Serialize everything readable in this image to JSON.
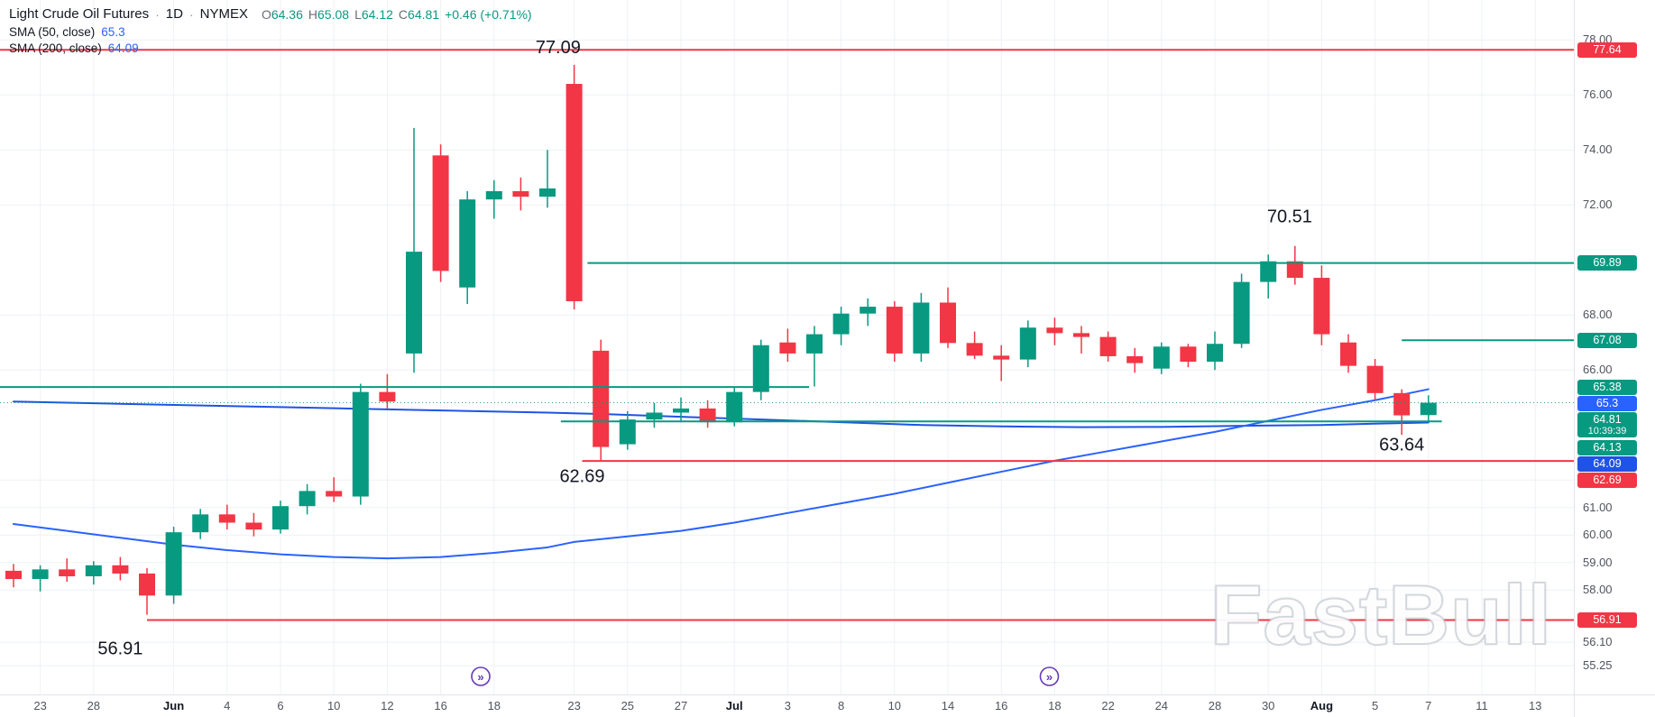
{
  "legend": {
    "symbol": "Light Crude Oil Futures",
    "dot": "·",
    "interval": "1D",
    "exchange": "NYMEX",
    "ohlc": {
      "o_label": "O",
      "o": "64.36",
      "h_label": "H",
      "h": "65.08",
      "l_label": "L",
      "l": "64.12",
      "c_label": "C",
      "c": "64.81",
      "change": "+0.46 (+0.71%)"
    },
    "indicators": [
      {
        "name": "SMA (50, close)",
        "value": "65.3"
      },
      {
        "name": "SMA (200, close)",
        "value": "64.09"
      }
    ]
  },
  "watermark": "FastBull",
  "colors": {
    "up": "#089981",
    "down": "#F23645",
    "sma50": "#2962FF",
    "sma200": "#1E53E5",
    "level_green": "#089981",
    "level_red": "#F23645",
    "grid": "#eef1f6",
    "axis_text": "#50535e",
    "text": "#131722",
    "marker": "#673AB7"
  },
  "chart_data": {
    "type": "candlestick",
    "title": "Light Crude Oil Futures · 1D · NYMEX",
    "ylim": [
      54.4,
      79.45
    ],
    "grid": true,
    "last": {
      "price": 64.81,
      "countdown": "10:39:39",
      "direction": "up"
    },
    "price_axis": {
      "ticks": [
        "78.00",
        "76.00",
        "74.00",
        "72.00",
        "68.00",
        "66.00",
        "62.00",
        "61.00",
        "60.00",
        "59.00",
        "58.00",
        "56.10",
        "55.25"
      ],
      "badges": [
        {
          "text": "77.64",
          "price": 77.64,
          "bg": "#F23645"
        },
        {
          "text": "69.89",
          "price": 69.89,
          "bg": "#089981"
        },
        {
          "text": "67.08",
          "price": 67.08,
          "bg": "#089981"
        },
        {
          "text": "65.38",
          "price": 65.38,
          "bg": "#089981"
        },
        {
          "text": "65.3",
          "price": 65.3,
          "bg": "#2962FF"
        },
        {
          "text": "64.81",
          "price": 64.81,
          "bg": "#089981",
          "countdown": "10:39:39"
        },
        {
          "text": "64.13",
          "price": 64.13,
          "bg": "#089981"
        },
        {
          "text": "64.09",
          "price": 64.09,
          "bg": "#1E53E5"
        },
        {
          "text": "62.69",
          "price": 62.69,
          "bg": "#F23645"
        },
        {
          "text": "56.91",
          "price": 56.91,
          "bg": "#F23645"
        }
      ]
    },
    "time_axis": {
      "labels": [
        [
          "23",
          1
        ],
        [
          "28",
          3
        ],
        [
          "Jun",
          6
        ],
        [
          "4",
          8
        ],
        [
          "6",
          10
        ],
        [
          "10",
          12
        ],
        [
          "12",
          14
        ],
        [
          "16",
          16
        ],
        [
          "18",
          18
        ],
        [
          "23",
          21
        ],
        [
          "25",
          23
        ],
        [
          "27",
          25
        ],
        [
          "Jul",
          27
        ],
        [
          "3",
          29
        ],
        [
          "8",
          31
        ],
        [
          "10",
          33
        ],
        [
          "14",
          35
        ],
        [
          "16",
          37
        ],
        [
          "18",
          39
        ],
        [
          "22",
          41
        ],
        [
          "24",
          43
        ],
        [
          "28",
          45
        ],
        [
          "30",
          47
        ],
        [
          "Aug",
          49
        ],
        [
          "5",
          51
        ],
        [
          "7",
          53
        ],
        [
          "11",
          55
        ],
        [
          "13",
          57
        ]
      ]
    },
    "candles": [
      {
        "d": "May 22",
        "o": 58.7,
        "h": 58.95,
        "l": 58.1,
        "c": 58.4
      },
      {
        "d": "May 23",
        "o": 58.4,
        "h": 58.9,
        "l": 57.95,
        "c": 58.75
      },
      {
        "d": "May 27",
        "o": 58.75,
        "h": 59.15,
        "l": 58.3,
        "c": 58.5
      },
      {
        "d": "May 28",
        "o": 58.5,
        "h": 59.05,
        "l": 58.2,
        "c": 58.9
      },
      {
        "d": "May 29",
        "o": 58.9,
        "h": 59.2,
        "l": 58.35,
        "c": 58.6
      },
      {
        "d": "May 30",
        "o": 58.6,
        "h": 58.8,
        "l": 57.1,
        "c": 57.8
      },
      {
        "d": "Jun 2",
        "o": 57.8,
        "h": 60.3,
        "l": 57.5,
        "c": 60.1
      },
      {
        "d": "Jun 3",
        "o": 60.1,
        "h": 60.95,
        "l": 59.85,
        "c": 60.75
      },
      {
        "d": "Jun 4",
        "o": 60.75,
        "h": 61.1,
        "l": 60.2,
        "c": 60.45
      },
      {
        "d": "Jun 5",
        "o": 60.45,
        "h": 60.8,
        "l": 59.95,
        "c": 60.2
      },
      {
        "d": "Jun 6",
        "o": 60.2,
        "h": 61.25,
        "l": 60.05,
        "c": 61.05
      },
      {
        "d": "Jun 9",
        "o": 61.05,
        "h": 61.85,
        "l": 60.75,
        "c": 61.6
      },
      {
        "d": "Jun 10",
        "o": 61.6,
        "h": 62.1,
        "l": 61.2,
        "c": 61.4
      },
      {
        "d": "Jun 11",
        "o": 61.4,
        "h": 65.5,
        "l": 61.1,
        "c": 65.2
      },
      {
        "d": "Jun 12",
        "o": 65.2,
        "h": 65.85,
        "l": 64.6,
        "c": 64.85
      },
      {
        "d": "Jun 13",
        "o": 66.6,
        "h": 74.8,
        "l": 65.9,
        "c": 70.3
      },
      {
        "d": "Jun 16",
        "o": 73.8,
        "h": 74.2,
        "l": 69.2,
        "c": 69.6
      },
      {
        "d": "Jun 17",
        "o": 69.0,
        "h": 72.5,
        "l": 68.4,
        "c": 72.2
      },
      {
        "d": "Jun 18",
        "o": 72.2,
        "h": 72.9,
        "l": 71.5,
        "c": 72.5
      },
      {
        "d": "Jun 19",
        "o": 72.5,
        "h": 73.0,
        "l": 71.8,
        "c": 72.3
      },
      {
        "d": "Jun 20",
        "o": 72.3,
        "h": 74.0,
        "l": 71.9,
        "c": 72.6
      },
      {
        "d": "Jun 23",
        "o": 76.4,
        "h": 77.09,
        "l": 68.2,
        "c": 68.5
      },
      {
        "d": "Jun 24",
        "o": 66.7,
        "h": 67.1,
        "l": 62.69,
        "c": 63.2
      },
      {
        "d": "Jun 25",
        "o": 63.3,
        "h": 64.5,
        "l": 63.1,
        "c": 64.2
      },
      {
        "d": "Jun 26",
        "o": 64.2,
        "h": 64.8,
        "l": 63.9,
        "c": 64.45
      },
      {
        "d": "Jun 27",
        "o": 64.45,
        "h": 65.0,
        "l": 64.1,
        "c": 64.6
      },
      {
        "d": "Jun 30",
        "o": 64.6,
        "h": 64.9,
        "l": 63.9,
        "c": 64.1
      },
      {
        "d": "Jul 1",
        "o": 64.1,
        "h": 65.4,
        "l": 63.95,
        "c": 65.2
      },
      {
        "d": "Jul 2",
        "o": 65.2,
        "h": 67.1,
        "l": 64.9,
        "c": 66.9
      },
      {
        "d": "Jul 3",
        "o": 67.0,
        "h": 67.5,
        "l": 66.3,
        "c": 66.6
      },
      {
        "d": "Jul 7",
        "o": 66.6,
        "h": 67.6,
        "l": 65.4,
        "c": 67.3
      },
      {
        "d": "Jul 8",
        "o": 67.3,
        "h": 68.3,
        "l": 66.9,
        "c": 68.05
      },
      {
        "d": "Jul 9",
        "o": 68.05,
        "h": 68.6,
        "l": 67.6,
        "c": 68.3
      },
      {
        "d": "Jul 10",
        "o": 68.3,
        "h": 68.5,
        "l": 66.3,
        "c": 66.6
      },
      {
        "d": "Jul 11",
        "o": 66.6,
        "h": 68.8,
        "l": 66.3,
        "c": 68.45
      },
      {
        "d": "Jul 14",
        "o": 68.45,
        "h": 69.0,
        "l": 66.8,
        "c": 66.98
      },
      {
        "d": "Jul 15",
        "o": 66.98,
        "h": 67.4,
        "l": 66.4,
        "c": 66.52
      },
      {
        "d": "Jul 16",
        "o": 66.52,
        "h": 66.9,
        "l": 65.6,
        "c": 66.38
      },
      {
        "d": "Jul 17",
        "o": 66.38,
        "h": 67.8,
        "l": 66.1,
        "c": 67.54
      },
      {
        "d": "Jul 18",
        "o": 67.54,
        "h": 67.9,
        "l": 66.9,
        "c": 67.34
      },
      {
        "d": "Jul 21",
        "o": 67.34,
        "h": 67.6,
        "l": 66.6,
        "c": 67.2
      },
      {
        "d": "Jul 22",
        "o": 67.2,
        "h": 67.4,
        "l": 66.3,
        "c": 66.5
      },
      {
        "d": "Jul 23",
        "o": 66.5,
        "h": 66.8,
        "l": 65.9,
        "c": 66.25
      },
      {
        "d": "Jul 24",
        "o": 66.05,
        "h": 67.0,
        "l": 65.85,
        "c": 66.85
      },
      {
        "d": "Jul 25",
        "o": 66.85,
        "h": 66.95,
        "l": 66.1,
        "c": 66.3
      },
      {
        "d": "Jul 28",
        "o": 66.3,
        "h": 67.4,
        "l": 66.0,
        "c": 66.95
      },
      {
        "d": "Jul 29",
        "o": 66.95,
        "h": 69.5,
        "l": 66.8,
        "c": 69.2
      },
      {
        "d": "Jul 30",
        "o": 69.2,
        "h": 70.2,
        "l": 68.6,
        "c": 69.95
      },
      {
        "d": "Jul 31",
        "o": 69.95,
        "h": 70.51,
        "l": 69.1,
        "c": 69.35
      },
      {
        "d": "Aug 1",
        "o": 69.35,
        "h": 69.8,
        "l": 66.9,
        "c": 67.3
      },
      {
        "d": "Aug 4",
        "o": 67.0,
        "h": 67.3,
        "l": 65.9,
        "c": 66.15
      },
      {
        "d": "Aug 5",
        "o": 66.15,
        "h": 66.4,
        "l": 64.9,
        "c": 65.16
      },
      {
        "d": "Aug 6",
        "o": 65.16,
        "h": 65.3,
        "l": 63.64,
        "c": 64.35
      },
      {
        "d": "Aug 7",
        "o": 64.36,
        "h": 65.08,
        "l": 64.12,
        "c": 64.81
      }
    ],
    "sma50": {
      "period": 50,
      "color": "#2962FF",
      "points": [
        [
          0,
          60.4
        ],
        [
          2,
          60.15
        ],
        [
          4,
          59.9
        ],
        [
          6,
          59.65
        ],
        [
          8,
          59.45
        ],
        [
          10,
          59.3
        ],
        [
          12,
          59.2
        ],
        [
          14,
          59.15
        ],
        [
          16,
          59.2
        ],
        [
          18,
          59.35
        ],
        [
          20,
          59.55
        ],
        [
          21,
          59.75
        ],
        [
          23,
          59.95
        ],
        [
          25,
          60.15
        ],
        [
          27,
          60.45
        ],
        [
          29,
          60.8
        ],
        [
          31,
          61.15
        ],
        [
          33,
          61.5
        ],
        [
          35,
          61.9
        ],
        [
          37,
          62.3
        ],
        [
          39,
          62.7
        ],
        [
          41,
          63.05
        ],
        [
          43,
          63.4
        ],
        [
          45,
          63.75
        ],
        [
          47,
          64.15
        ],
        [
          49,
          64.55
        ],
        [
          51,
          64.9
        ],
        [
          52,
          65.1
        ],
        [
          53,
          65.3
        ]
      ]
    },
    "sma200": {
      "period": 200,
      "color": "#1E53E5",
      "points": [
        [
          0,
          64.85
        ],
        [
          5,
          64.75
        ],
        [
          10,
          64.65
        ],
        [
          15,
          64.55
        ],
        [
          20,
          64.45
        ],
        [
          22,
          64.4
        ],
        [
          25,
          64.3
        ],
        [
          28,
          64.2
        ],
        [
          31,
          64.1
        ],
        [
          34,
          64.0
        ],
        [
          37,
          63.95
        ],
        [
          40,
          63.92
        ],
        [
          43,
          63.93
        ],
        [
          46,
          63.97
        ],
        [
          49,
          64.0
        ],
        [
          51,
          64.05
        ],
        [
          53,
          64.09
        ]
      ]
    },
    "levels": [
      {
        "price": 77.64,
        "from": "left",
        "to": "right",
        "color": "#F23645"
      },
      {
        "price": 69.89,
        "from": 21.5,
        "to": "right",
        "color": "#089981"
      },
      {
        "price": 67.08,
        "from": 52,
        "to": "right",
        "color": "#089981"
      },
      {
        "price": 65.38,
        "from": "left",
        "to": 29.8,
        "color": "#089981"
      },
      {
        "price": 64.13,
        "from": 20.5,
        "to": 53.5,
        "color": "#089981"
      },
      {
        "price": 62.69,
        "from": 21.3,
        "to": "right",
        "color": "#F23645"
      },
      {
        "price": 56.91,
        "from": 5,
        "to": "right",
        "color": "#F23645"
      }
    ],
    "annotations": [
      {
        "text": "77.09",
        "i": 20.4,
        "price": 77.75
      },
      {
        "text": "70.51",
        "i": 47.8,
        "price": 71.6
      },
      {
        "text": "63.64",
        "i": 52.0,
        "price": 63.3
      },
      {
        "text": "62.69",
        "i": 21.3,
        "price": 62.15
      },
      {
        "text": "56.91",
        "i": 4.0,
        "price": 55.9
      }
    ],
    "rollover_markers": [
      {
        "i": 17.5
      },
      {
        "i": 38.8
      }
    ]
  }
}
